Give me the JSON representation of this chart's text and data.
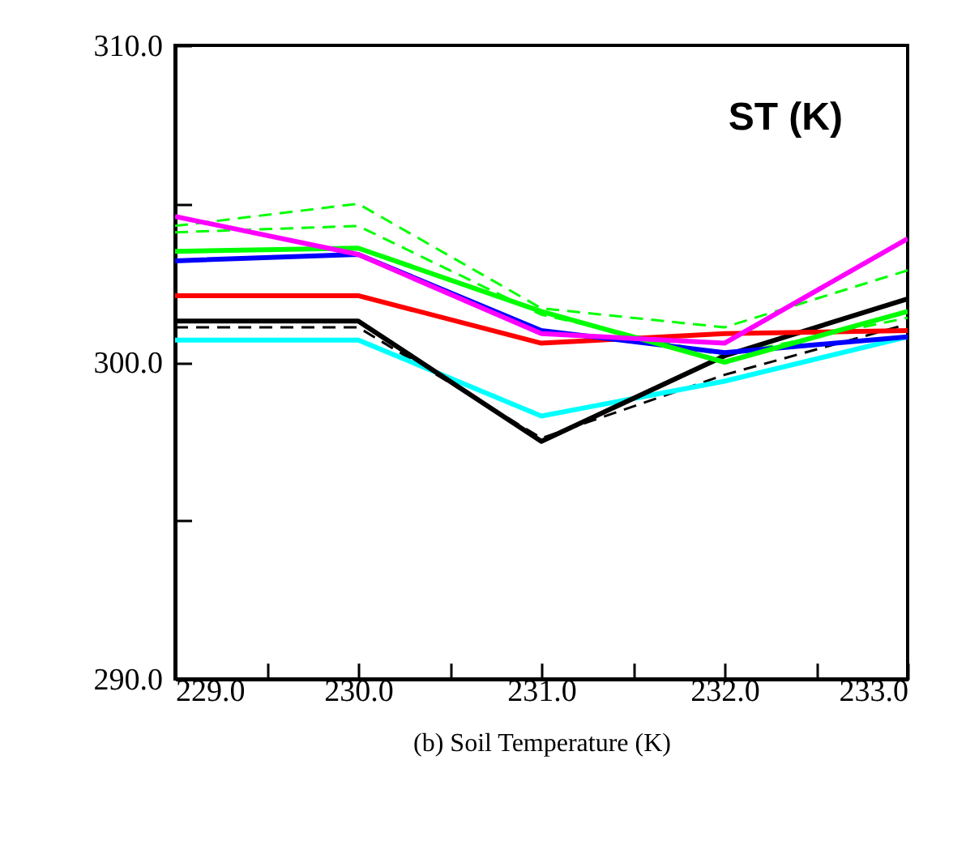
{
  "chart_data": {
    "type": "line",
    "title": "ST (K)",
    "xlabel": "(b) Soil Temperature (K)",
    "x": [
      229,
      230,
      231,
      232,
      233
    ],
    "xlim": [
      229,
      233
    ],
    "xticks": [
      {
        "value": 229,
        "label": "229.0"
      },
      {
        "value": 229.5,
        "label": null
      },
      {
        "value": 230,
        "label": "230.0"
      },
      {
        "value": 230.5,
        "label": null
      },
      {
        "value": 231,
        "label": "231.0"
      },
      {
        "value": 231.5,
        "label": null
      },
      {
        "value": 232,
        "label": "232.0"
      },
      {
        "value": 232.5,
        "label": null
      },
      {
        "value": 233,
        "label": "233.0"
      }
    ],
    "ylim": [
      290,
      310
    ],
    "yticks": [
      {
        "value": 290,
        "label": "290.0"
      },
      {
        "value": 295,
        "label": null
      },
      {
        "value": 300,
        "label": "300.0"
      },
      {
        "value": 305,
        "label": null
      },
      {
        "value": 310,
        "label": "310.0"
      }
    ],
    "grid": false,
    "marker": "none",
    "series": [
      {
        "color": "#00ff00",
        "line_style": "dashed",
        "values": [
          304.3,
          305.0,
          301.7,
          301.1,
          302.9
        ]
      },
      {
        "color": "#00ff00",
        "line_style": "dashed",
        "values": [
          304.1,
          304.3,
          301.5,
          300.2,
          301.4
        ]
      },
      {
        "color": "#000000",
        "line_style": "dashed",
        "values": [
          301.1,
          301.1,
          297.6,
          299.6,
          301.2
        ]
      },
      {
        "color": "#00ffff",
        "line_style": "solid",
        "values": [
          300.7,
          300.7,
          298.3,
          299.4,
          300.8
        ]
      },
      {
        "color": "#000000",
        "line_style": "solid",
        "values": [
          301.3,
          301.3,
          297.5,
          300.2,
          302.0
        ]
      },
      {
        "color": "#ff0000",
        "line_style": "solid",
        "values": [
          302.1,
          302.1,
          300.6,
          300.9,
          301.0
        ]
      },
      {
        "color": "#0000ff",
        "line_style": "solid",
        "values": [
          303.2,
          303.4,
          301.0,
          300.3,
          300.8
        ]
      },
      {
        "color": "#00ff00",
        "line_style": "solid",
        "values": [
          303.5,
          303.6,
          301.6,
          300.0,
          301.6
        ]
      },
      {
        "color": "#ff00ff",
        "line_style": "solid",
        "values": [
          304.6,
          303.4,
          300.9,
          300.6,
          303.9
        ]
      }
    ]
  }
}
